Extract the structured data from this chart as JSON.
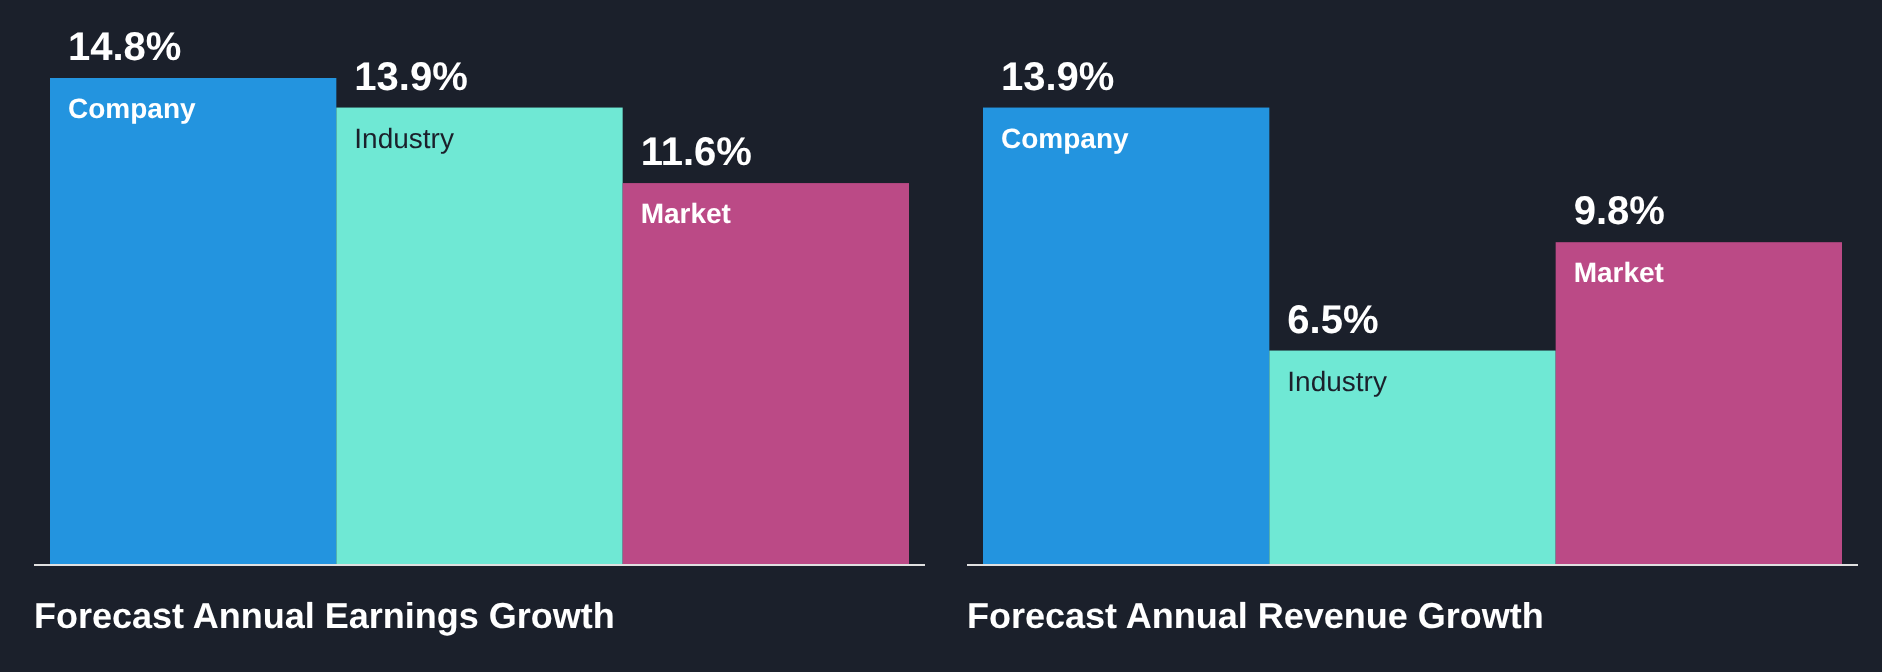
{
  "chart_data": [
    {
      "type": "bar",
      "title": "Forecast Annual Earnings Growth",
      "categories": [
        "Company",
        "Industry",
        "Market"
      ],
      "values": [
        14.8,
        13.9,
        11.6
      ],
      "value_labels": [
        "14.8%",
        "13.9%",
        "11.6%"
      ],
      "colors": [
        "#2394df",
        "#6fe8d4",
        "#bb4a86"
      ]
    },
    {
      "type": "bar",
      "title": "Forecast Annual Revenue Growth",
      "categories": [
        "Company",
        "Industry",
        "Market"
      ],
      "values": [
        13.9,
        6.5,
        9.8
      ],
      "value_labels": [
        "13.9%",
        "6.5%",
        "9.8%"
      ],
      "colors": [
        "#2394df",
        "#6fe8d4",
        "#bb4a86"
      ]
    }
  ]
}
